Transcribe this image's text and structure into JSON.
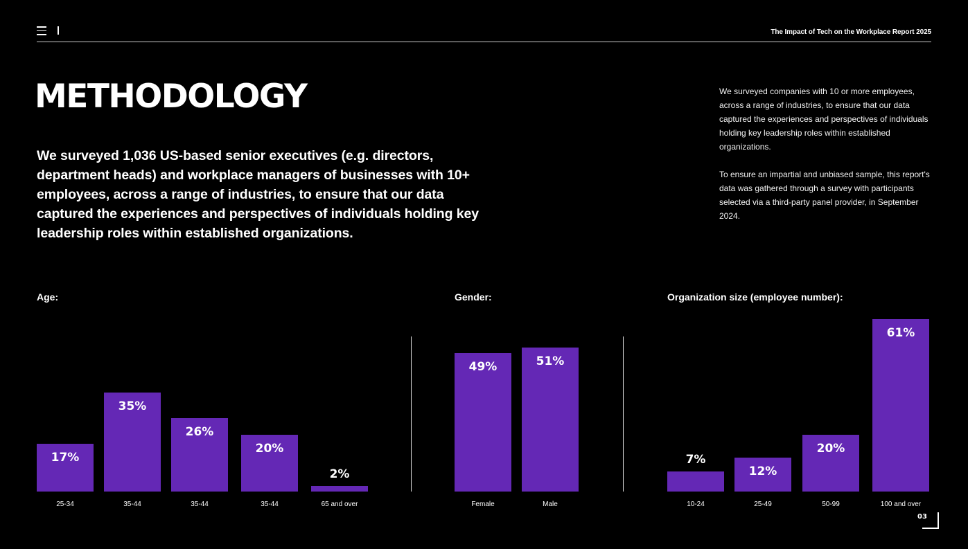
{
  "header": {
    "report_title": "The Impact of Tech on the Workplace Report 2025"
  },
  "title": "METHODOLOGY",
  "lead": "We surveyed 1,036 US-based senior executives (e.g. directors, department heads) and workplace managers of businesses with 10+ employees, across a range of industries, to ensure that our data captured the experiences and perspectives  of individuals holding key leadership roles within  established organizations.",
  "side_text": {
    "p1": "We surveyed companies with 10 or more employees, across a range of industries, to ensure that our data captured the experiences and perspectives of individuals holding key leadership roles within established organizations.",
    "p2": "To ensure an impartial and unbiased sample, this report's data was gathered through a survey with participants selected via a third-party panel provider, in September 2024."
  },
  "page_number": "03",
  "colors": {
    "bar": "#6428b5",
    "background": "#000000",
    "text": "#ffffff"
  },
  "chart_data": [
    {
      "type": "bar",
      "title": "Age:",
      "categories": [
        "25-34",
        "35-44",
        "35-44",
        "35-44",
        "65 and over"
      ],
      "values": [
        17,
        35,
        26,
        20,
        2
      ],
      "labels": [
        "17%",
        "35%",
        "26%",
        "20%",
        "2%"
      ],
      "ylim": [
        0,
        61
      ]
    },
    {
      "type": "bar",
      "title": "Gender:",
      "categories": [
        "Female",
        "Male"
      ],
      "values": [
        49,
        51
      ],
      "labels": [
        "49%",
        "51%"
      ],
      "ylim": [
        0,
        61
      ]
    },
    {
      "type": "bar",
      "title": "Organization size (employee number):",
      "categories": [
        "10-24",
        "25-49",
        "50-99",
        "100 and over"
      ],
      "values": [
        7,
        12,
        20,
        61
      ],
      "labels": [
        "7%",
        "12%",
        "20%",
        "61%"
      ],
      "ylim": [
        0,
        61
      ]
    }
  ]
}
